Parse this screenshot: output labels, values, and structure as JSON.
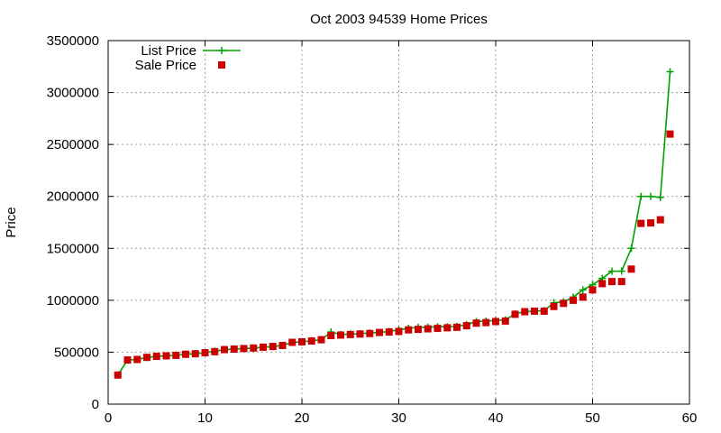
{
  "chart_data": {
    "type": "line",
    "title": "Oct 2003 94539 Home Prices",
    "xlabel": "",
    "ylabel": "Price",
    "xlim": [
      0,
      60
    ],
    "ylim": [
      0,
      3500000
    ],
    "xticks": [
      0,
      10,
      20,
      30,
      40,
      50,
      60
    ],
    "yticks": [
      0,
      500000,
      1000000,
      1500000,
      2000000,
      2500000,
      3000000,
      3500000
    ],
    "grid": true,
    "legend_position": "top-left",
    "series": [
      {
        "name": "List Price",
        "style": "lines+points",
        "color": "#00a000",
        "marker": "plus",
        "x": [
          1,
          2,
          3,
          4,
          5,
          6,
          7,
          8,
          9,
          10,
          11,
          12,
          13,
          14,
          15,
          16,
          17,
          18,
          19,
          20,
          21,
          22,
          23,
          24,
          25,
          26,
          27,
          28,
          29,
          30,
          31,
          32,
          33,
          34,
          35,
          36,
          37,
          38,
          39,
          40,
          41,
          42,
          43,
          44,
          45,
          46,
          47,
          48,
          49,
          50,
          51,
          52,
          53,
          54,
          55,
          56,
          57,
          58
        ],
        "y": [
          280000,
          425000,
          430000,
          450000,
          460000,
          465000,
          470000,
          480000,
          485000,
          495000,
          510000,
          525000,
          530000,
          535000,
          540000,
          548000,
          555000,
          565000,
          595000,
          600000,
          610000,
          620000,
          695000,
          670000,
          675000,
          678000,
          685000,
          690000,
          700000,
          715000,
          730000,
          740000,
          740000,
          745000,
          745000,
          748000,
          765000,
          795000,
          800000,
          805000,
          810000,
          870000,
          890000,
          895000,
          900000,
          975000,
          985000,
          1030000,
          1100000,
          1150000,
          1210000,
          1280000,
          1280000,
          1500000,
          2000000,
          2000000,
          1990000,
          3200000
        ]
      },
      {
        "name": "Sale Price",
        "style": "points",
        "color": "#cc0000",
        "marker": "square",
        "x": [
          1,
          2,
          3,
          4,
          5,
          6,
          7,
          8,
          9,
          10,
          11,
          12,
          13,
          14,
          15,
          16,
          17,
          18,
          19,
          20,
          21,
          22,
          23,
          24,
          25,
          26,
          27,
          28,
          29,
          30,
          31,
          32,
          33,
          34,
          35,
          36,
          37,
          38,
          39,
          40,
          41,
          42,
          43,
          44,
          45,
          46,
          47,
          48,
          49,
          50,
          51,
          52,
          53,
          54,
          55,
          56,
          57,
          58
        ],
        "y": [
          280000,
          425000,
          430000,
          450000,
          460000,
          465000,
          470000,
          480000,
          485000,
          495000,
          505000,
          525000,
          530000,
          535000,
          540000,
          548000,
          555000,
          565000,
          595000,
          600000,
          608000,
          620000,
          660000,
          665000,
          670000,
          675000,
          680000,
          690000,
          695000,
          700000,
          715000,
          720000,
          725000,
          730000,
          735000,
          740000,
          755000,
          780000,
          785000,
          795000,
          800000,
          865000,
          890000,
          895000,
          895000,
          940000,
          970000,
          1000000,
          1030000,
          1100000,
          1160000,
          1180000,
          1180000,
          1300000,
          1740000,
          1745000,
          1775000,
          2600000
        ]
      }
    ]
  }
}
